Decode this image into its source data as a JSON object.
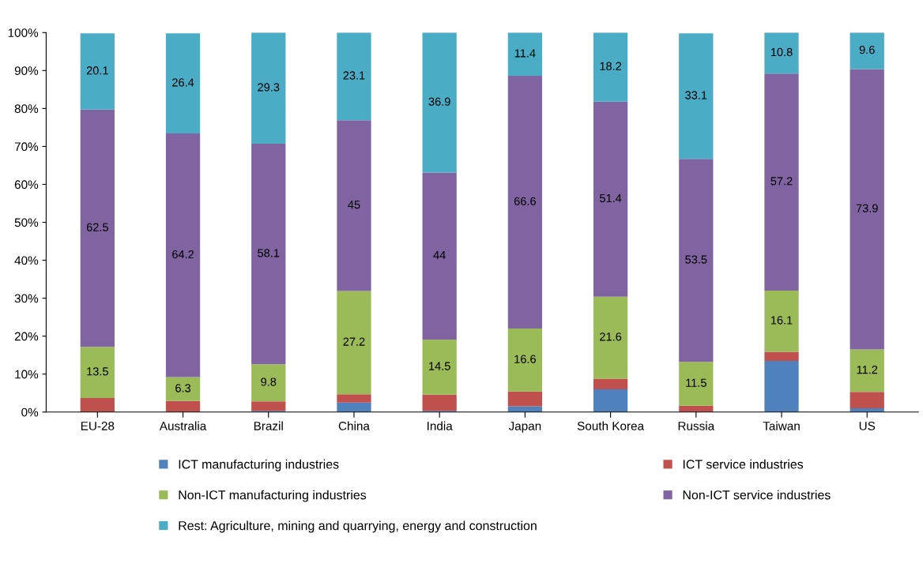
{
  "chart_data": {
    "type": "bar",
    "stacked": true,
    "categories": [
      "EU-28",
      "Australia",
      "Brazil",
      "China",
      "India",
      "Japan",
      "South Korea",
      "Russia",
      "Taiwan",
      "US"
    ],
    "series": [
      {
        "name": "ICT manufacturing industries",
        "color": "#4f81bd",
        "values": [
          null,
          null,
          0.3,
          2.5,
          0.3,
          1.5,
          6.0,
          null,
          13.5,
          1.0
        ]
      },
      {
        "name": "ICT service industries",
        "color": "#c0504d",
        "values": [
          3.7,
          2.9,
          2.5,
          2.2,
          4.3,
          3.9,
          2.8,
          1.7,
          2.4,
          4.3
        ]
      },
      {
        "name": "Non-ICT manufacturing industries",
        "color": "#9bbb59",
        "values": [
          13.5,
          6.3,
          9.8,
          27.2,
          14.5,
          16.6,
          21.6,
          11.5,
          16.1,
          11.2
        ],
        "value_labels": [
          "13.5",
          "6.3",
          "9.8",
          "27.2",
          "14.5",
          "16.6",
          "21.6",
          "11.5",
          "16.1",
          "11.2"
        ]
      },
      {
        "name": "Non-ICT service industries",
        "color": "#8064a2",
        "values": [
          62.5,
          64.2,
          58.1,
          45,
          44,
          66.6,
          51.4,
          53.5,
          57.2,
          73.9
        ],
        "value_labels": [
          "62.5",
          "64.2",
          "58.1",
          "45",
          "44",
          "66.6",
          "51.4",
          "53.5",
          "57.2",
          "73.9"
        ]
      },
      {
        "name": "Rest: Agriculture, mining and quarrying, energy and construction",
        "color": "#4bacc6",
        "values": [
          20.1,
          26.4,
          29.3,
          23.1,
          36.9,
          11.4,
          18.2,
          33.1,
          10.8,
          9.6
        ],
        "value_labels": [
          "20.1",
          "26.4",
          "29.3",
          "23.1",
          "36.9",
          "11.4",
          "18.2",
          "33.1",
          "10.8",
          "9.6"
        ]
      }
    ],
    "ylim": [
      0,
      100
    ],
    "yticks": [
      {
        "value": 0,
        "label": "0%"
      },
      {
        "value": 10,
        "label": "10%"
      },
      {
        "value": 20,
        "label": "20%"
      },
      {
        "value": 30,
        "label": "30%"
      },
      {
        "value": 40,
        "label": "40%"
      },
      {
        "value": 50,
        "label": "50%"
      },
      {
        "value": 60,
        "label": "60%"
      },
      {
        "value": 70,
        "label": "70%"
      },
      {
        "value": 80,
        "label": "80%"
      },
      {
        "value": 90,
        "label": "90%"
      },
      {
        "value": 100,
        "label": "100%"
      }
    ],
    "legend": "bottom"
  }
}
